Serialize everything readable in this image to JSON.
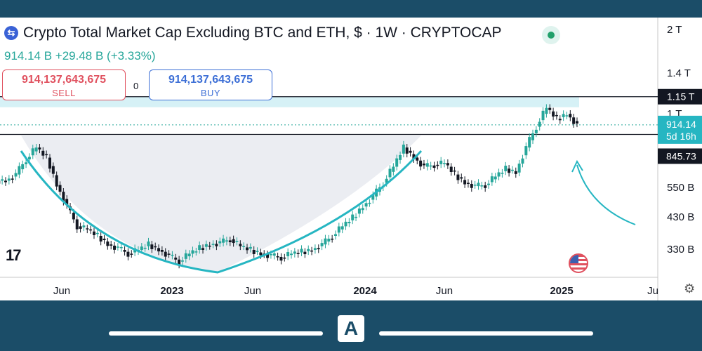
{
  "header": {
    "title": "Crypto Total Market Cap Excluding BTC and ETH, $ · 1W · CRYPTOCAP",
    "price_line": "914.14 B  +29.48 B (+3.33%)"
  },
  "trade": {
    "sell_value": "914,137,643,675",
    "sell_label": "SELL",
    "buy_value": "914,137,643,675",
    "buy_label": "BUY",
    "spread": "0"
  },
  "branding": {
    "chart_logo": "17",
    "bottom_logo": "A"
  },
  "colors": {
    "up": "#26a69a",
    "down": "#131722",
    "curve": "#26b6c2",
    "zone": "#cfeff5",
    "bar": "#1b4d68"
  },
  "icons": {
    "coin": "coin-icon",
    "live": "live-dot-icon",
    "flag": "us-flag-icon",
    "settings": "settings-icon"
  },
  "chart_data": {
    "type": "line",
    "title": "Crypto Total Market Cap Excluding BTC and ETH, $ · 1W · CRYPTOCAP",
    "x_ticks": [
      "Jun",
      "2023",
      "Jun",
      "2024",
      "Jun",
      "2025",
      "Ju"
    ],
    "y_ticks": [
      "2 T",
      "1.4 T",
      "1 T",
      "550 B",
      "430 B",
      "330 B"
    ],
    "y_scale": "log",
    "price_labels": {
      "resistance": "1.15 T",
      "current": "914.14",
      "countdown": "5d 16h",
      "support": "845.73"
    },
    "series": [
      {
        "values": [
          580,
          610,
          690,
          760,
          700,
          560,
          470,
          400,
          390,
          370,
          345,
          335,
          320,
          330,
          345,
          330,
          315,
          300,
          320,
          335,
          345,
          350,
          360,
          340,
          330,
          320,
          315,
          310,
          320,
          325,
          330,
          345,
          370,
          400,
          430,
          470,
          510,
          570,
          650,
          760,
          700,
          650,
          660,
          670,
          610,
          570,
          555,
          560,
          600,
          640,
          620,
          760,
          900,
          1050,
          960,
          1000,
          914
        ]
      }
    ],
    "annotations": [
      "rounded bottom curve",
      "resistance zone 1.15 T",
      "support line 845.73 B",
      "arrow pointing at support"
    ]
  }
}
